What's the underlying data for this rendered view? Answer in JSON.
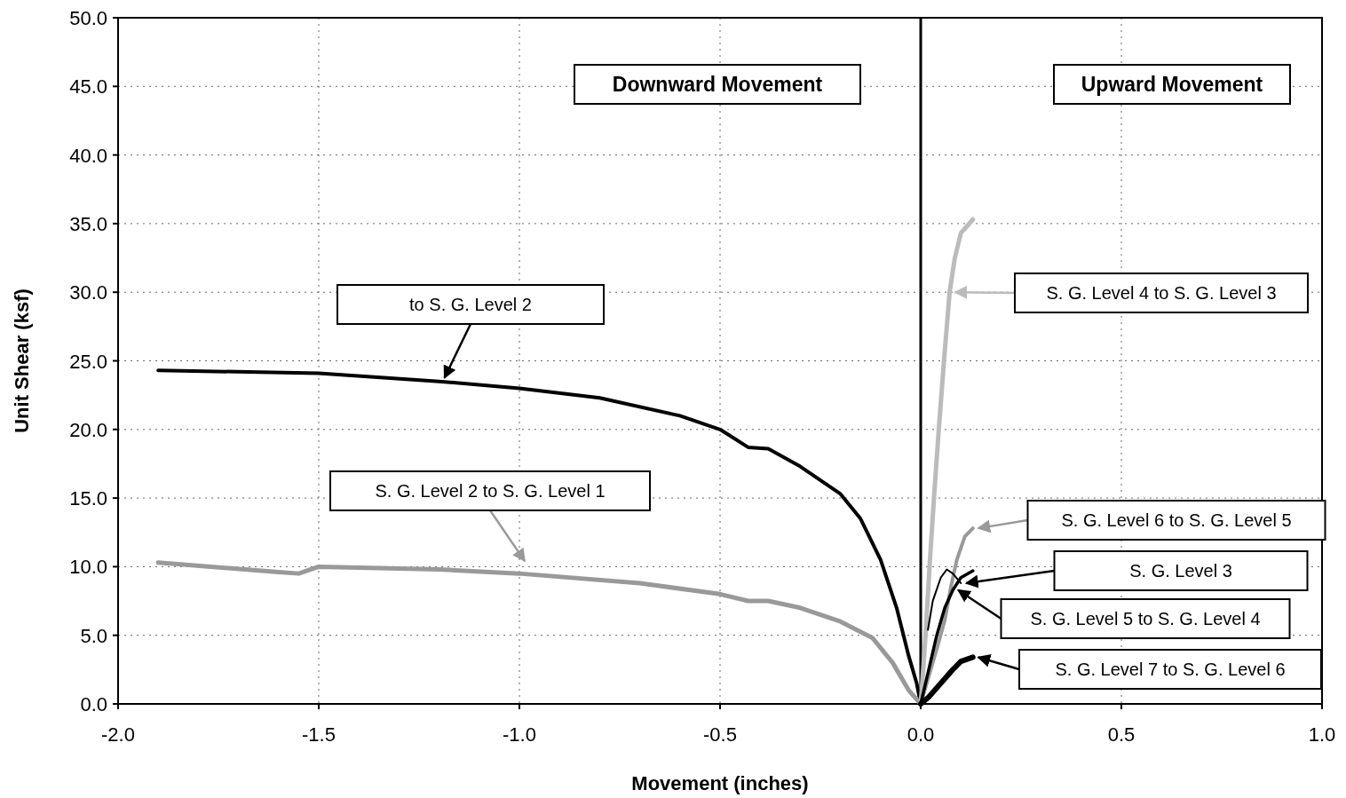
{
  "chart_data": {
    "type": "line",
    "xlabel": "Movement  (inches)",
    "ylabel": "Unit Shear (ksf)",
    "xlim": [
      -2.0,
      1.0
    ],
    "xticks": [
      {
        "value": -2,
        "label": "-2.0"
      },
      {
        "value": -1.5,
        "label": "-1.5"
      },
      {
        "value": -1,
        "label": "-1.0"
      },
      {
        "value": -0.5,
        "label": "-0.5"
      },
      {
        "value": 0,
        "label": "0.0"
      },
      {
        "value": 0.5,
        "label": "0.5"
      },
      {
        "value": 1,
        "label": "1.0"
      }
    ],
    "ylim": [
      0,
      50
    ],
    "yticks": [
      {
        "value": 0,
        "label": "0.0"
      },
      {
        "value": 5,
        "label": "5.0"
      },
      {
        "value": 10,
        "label": "10.0"
      },
      {
        "value": 15,
        "label": "15.0"
      },
      {
        "value": 20,
        "label": "20.0"
      },
      {
        "value": 25,
        "label": "25.0"
      },
      {
        "value": 30,
        "label": "30.0"
      },
      {
        "value": 35,
        "label": "35.0"
      },
      {
        "value": 40,
        "label": "40.0"
      },
      {
        "value": 45,
        "label": "45.0"
      },
      {
        "value": 50,
        "label": "50.0"
      }
    ],
    "grid": true,
    "legend": "right",
    "marker": "none",
    "line_style": "solid",
    "ref_lines": [
      {
        "axis": "x",
        "value": 0,
        "color": "#000000"
      }
    ],
    "annotations": [
      "Downward Movement",
      "Upward Movement"
    ],
    "series": [
      {
        "name": "to S. G. Level 2",
        "color": "#000000",
        "x": [
          -1.9,
          -1.5,
          -1.2,
          -1.0,
          -0.8,
          -0.6,
          -0.5,
          -0.43,
          -0.38,
          -0.3,
          -0.2,
          -0.15,
          -0.1,
          -0.06,
          -0.03,
          -0.01,
          0
        ],
        "values": [
          24.3,
          24.1,
          23.5,
          23.0,
          22.3,
          21.0,
          20.0,
          18.7,
          18.6,
          17.3,
          15.3,
          13.5,
          10.5,
          7.0,
          3.5,
          1.5,
          0
        ]
      },
      {
        "name": "S. G. Level 2  to S. G. Level 1",
        "color": "#999999",
        "x": [
          -1.9,
          -1.6,
          -1.55,
          -1.5,
          -1.2,
          -1.0,
          -0.7,
          -0.5,
          -0.43,
          -0.38,
          -0.3,
          -0.2,
          -0.12,
          -0.07,
          -0.03,
          0
        ],
        "values": [
          10.3,
          9.6,
          9.5,
          10.0,
          9.8,
          9.5,
          8.8,
          8.0,
          7.5,
          7.5,
          7.0,
          6.0,
          4.8,
          3.0,
          1.0,
          0
        ]
      },
      {
        "name": "S. G. Level 4  to S. G. Level 3",
        "color": "#bbbbbb",
        "x": [
          0,
          0.005,
          0.012,
          0.022,
          0.033,
          0.045,
          0.058,
          0.072,
          0.085,
          0.1,
          0.13
        ],
        "values": [
          0,
          2,
          5,
          10,
          15,
          20,
          25,
          30,
          32.5,
          34.3,
          35.3
        ]
      },
      {
        "name": "S. G. Level 6  to S. G. Level 5",
        "color": "#999999",
        "x": [
          0,
          0.02,
          0.04,
          0.06,
          0.075,
          0.09,
          0.11,
          0.13
        ],
        "values": [
          0,
          2,
          4,
          6.1,
          8.5,
          10.5,
          12.2,
          12.8
        ]
      },
      {
        "name": "S. G. Level 3",
        "color": "#000000",
        "x": [
          0.018,
          0.03,
          0.05,
          0.065,
          0.08,
          0.1
        ],
        "values": [
          5.4,
          7.5,
          9.2,
          9.8,
          9.5,
          8.8
        ]
      },
      {
        "name": "S. G. Level 5  to S. G. Level 4",
        "color": "#000000",
        "x": [
          0,
          0.02,
          0.04,
          0.06,
          0.08,
          0.1,
          0.13
        ],
        "values": [
          0,
          2.5,
          5,
          7,
          8.3,
          9.2,
          9.7
        ]
      },
      {
        "name": "S. G. Level 7  to S. G. Level 6",
        "color": "#000000",
        "x": [
          0,
          0.02,
          0.05,
          0.08,
          0.1,
          0.13
        ],
        "values": [
          0,
          0.5,
          1.5,
          2.5,
          3.1,
          3.4
        ]
      }
    ]
  }
}
